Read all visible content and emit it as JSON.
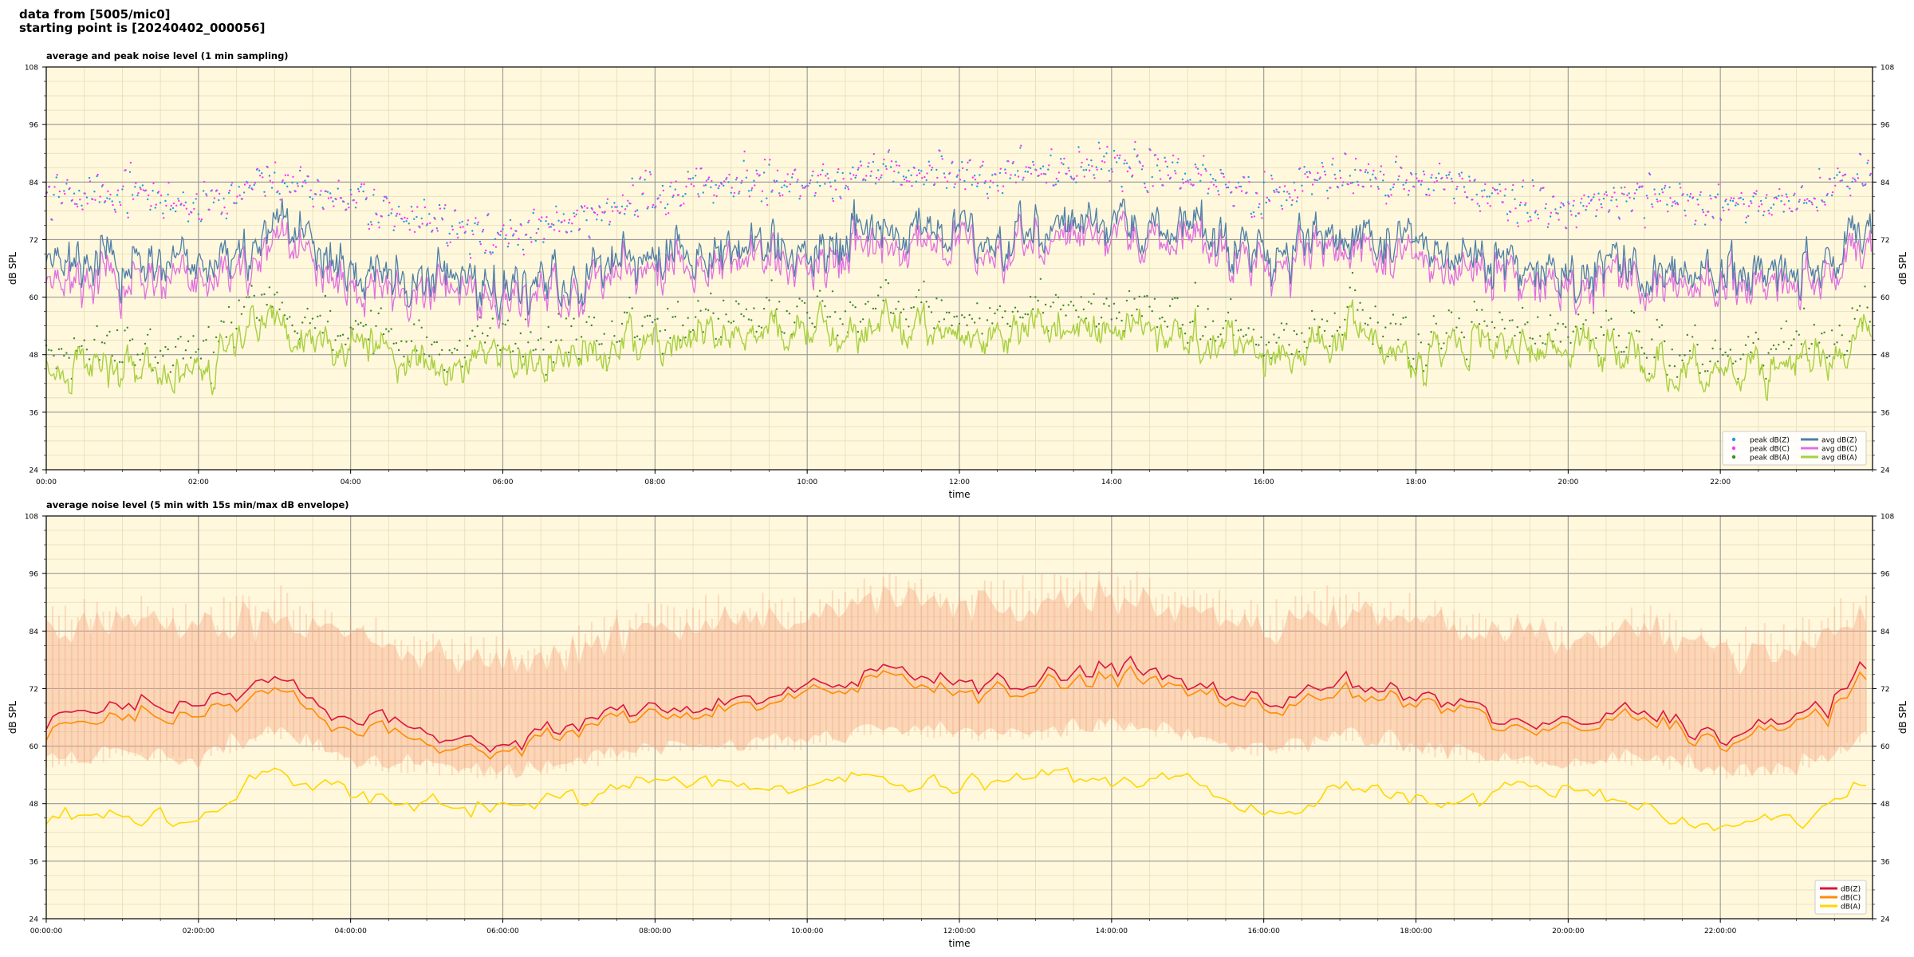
{
  "header": {
    "line1": "data from [5005/mic0]",
    "line2": "starting point is [20240402_000056]"
  },
  "colors": {
    "plot_bg": "#fff8dc",
    "peak_z": "#1f9be0",
    "peak_c": "#ff33ff",
    "peak_a": "#3a8a2c",
    "avg_z": "#4f7fa8",
    "avg_c": "#e070e0",
    "avg_a": "#a8d040",
    "line_z": "#dc143c",
    "line_c": "#ff8c00",
    "line_a": "#ffd700",
    "envelope": "#f4a582"
  },
  "chart_data": [
    {
      "type": "line",
      "title": "average and peak noise level (1 min sampling)",
      "xlabel": "time",
      "ylabel": "dB SPL",
      "ylim": [
        24,
        108
      ],
      "xlim_hours": [
        0,
        24
      ],
      "yticks": [
        "24",
        "36",
        "48",
        "60",
        "72",
        "84",
        "96",
        "108"
      ],
      "xticks": [
        "00:00",
        "02:00",
        "04:00",
        "06:00",
        "08:00",
        "10:00",
        "12:00",
        "14:00",
        "16:00",
        "18:00",
        "20:00",
        "22:00"
      ],
      "grid": true,
      "legend_position": "bottom-right",
      "legend": [
        "peak dB(Z)",
        "peak dB(C)",
        "peak dB(A)",
        "avg dB(Z)",
        "avg dB(C)",
        "avg dB(A)"
      ],
      "series_hourly": {
        "hours": [
          0,
          1,
          2,
          3,
          4,
          5,
          6,
          7,
          8,
          9,
          10,
          11,
          12,
          13,
          14,
          15,
          16,
          17,
          18,
          19,
          20,
          21,
          22,
          23,
          24
        ],
        "avg_z": [
          67,
          69,
          68,
          75,
          66,
          63,
          61,
          64,
          69,
          70,
          70,
          75,
          73,
          74,
          76,
          73,
          68,
          74,
          71,
          67,
          64,
          67,
          63,
          65,
          74
        ],
        "avg_c": [
          64,
          67,
          66,
          73,
          64,
          62,
          60,
          63,
          68,
          69,
          69,
          73,
          72,
          73,
          75,
          72,
          67,
          73,
          69,
          66,
          63,
          66,
          62,
          64,
          72
        ],
        "avg_a": [
          44,
          45,
          44,
          53,
          49,
          48,
          46,
          49,
          52,
          52,
          51,
          54,
          52,
          53,
          55,
          53,
          45,
          52,
          48,
          49,
          50,
          47,
          43,
          45,
          52
        ],
        "peak_z": [
          80,
          82,
          80,
          84,
          80,
          76,
          73,
          76,
          82,
          84,
          83,
          87,
          85,
          86,
          88,
          86,
          80,
          86,
          84,
          81,
          78,
          82,
          79,
          80,
          86
        ]
      }
    },
    {
      "type": "line",
      "title": "average noise level (5 min with 15s min/max dB envelope)",
      "xlabel": "time",
      "ylabel": "dB SPL",
      "ylim": [
        24,
        108
      ],
      "xlim_hours": [
        0,
        24
      ],
      "yticks": [
        "24",
        "36",
        "48",
        "60",
        "72",
        "84",
        "96",
        "108"
      ],
      "xticks": [
        "00:00:00",
        "02:00:00",
        "04:00:00",
        "06:00:00",
        "08:00:00",
        "10:00:00",
        "12:00:00",
        "14:00:00",
        "16:00:00",
        "18:00:00",
        "20:00:00",
        "22:00:00"
      ],
      "grid": true,
      "legend_position": "bottom-right",
      "legend": [
        "dB(Z)",
        "dB(C)",
        "dB(A)"
      ],
      "series_hourly": {
        "hours": [
          0,
          1,
          2,
          3,
          4,
          5,
          6,
          7,
          8,
          9,
          10,
          11,
          12,
          13,
          14,
          15,
          16,
          17,
          18,
          19,
          20,
          21,
          22,
          23,
          24
        ],
        "db_z": [
          66,
          70,
          68,
          75,
          66,
          63,
          61,
          64,
          69,
          70,
          71,
          76,
          74,
          74,
          76,
          73,
          68,
          74,
          70,
          67,
          64,
          67,
          62,
          65,
          76
        ],
        "db_c": [
          64,
          68,
          66,
          73,
          64,
          61,
          60,
          63,
          68,
          69,
          70,
          75,
          72,
          73,
          74,
          72,
          67,
          72,
          69,
          66,
          63,
          66,
          61,
          64,
          74
        ],
        "db_a": [
          45,
          46,
          44,
          56,
          49,
          48,
          47,
          49,
          53,
          52,
          51,
          54,
          52,
          53,
          54,
          53,
          46,
          51,
          48,
          50,
          51,
          47,
          43,
          45,
          52
        ],
        "env_max": [
          84,
          86,
          84,
          88,
          82,
          79,
          77,
          80,
          85,
          86,
          87,
          91,
          89,
          90,
          92,
          89,
          84,
          89,
          86,
          83,
          81,
          84,
          79,
          81,
          88
        ],
        "env_min": [
          57,
          59,
          58,
          64,
          57,
          56,
          55,
          57,
          60,
          61,
          61,
          64,
          63,
          63,
          65,
          63,
          59,
          63,
          60,
          58,
          57,
          58,
          55,
          56,
          63
        ]
      }
    }
  ]
}
